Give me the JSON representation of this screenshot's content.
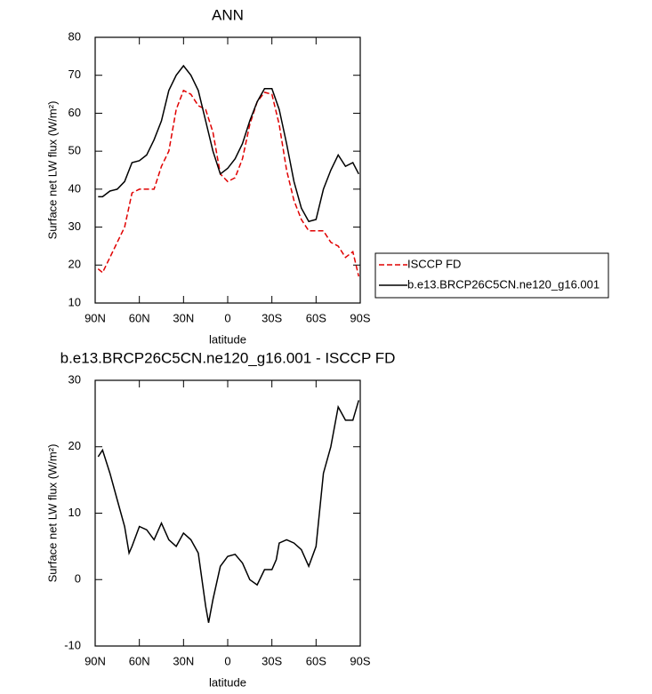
{
  "chart_data": [
    {
      "type": "line",
      "title": "ANN",
      "xlabel": "latitude",
      "ylabel": "Surface net LW flux (W/m²)",
      "x": [
        88,
        85,
        80,
        75,
        70,
        65,
        60,
        55,
        50,
        45,
        40,
        35,
        30,
        25,
        20,
        15,
        10,
        5,
        0,
        -5,
        -10,
        -15,
        -20,
        -25,
        -30,
        -35,
        -40,
        -45,
        -50,
        -55,
        -60,
        -65,
        -70,
        -75,
        -80,
        -85,
        -89
      ],
      "series": [
        {
          "name": "ISCCP FD",
          "color": "#e00000",
          "dashed": true,
          "values": [
            19,
            18,
            22,
            26,
            30,
            39,
            40,
            40,
            40,
            46,
            50,
            61,
            66,
            65,
            62,
            61,
            55,
            44,
            42,
            43,
            48,
            57,
            63,
            65.5,
            65,
            57,
            45,
            37,
            32,
            29,
            29,
            29,
            26,
            25,
            22,
            23.5,
            17
          ]
        },
        {
          "name": "b.e13.BRCP26C5CN.ne120_g16.001",
          "color": "#000000",
          "dashed": false,
          "values": [
            38,
            38,
            39.5,
            40,
            42,
            47,
            47.5,
            49,
            53,
            58,
            66,
            70,
            72.5,
            70,
            66,
            58,
            50,
            44,
            45.5,
            48,
            52,
            58,
            63,
            66.5,
            66.5,
            61,
            52,
            42,
            35,
            31.5,
            32,
            40,
            45,
            49,
            46,
            47,
            44
          ]
        }
      ],
      "xlim": [
        90,
        -90
      ],
      "xticks": [
        {
          "value": 90,
          "label": "90N"
        },
        {
          "value": 60,
          "label": "60N"
        },
        {
          "value": 30,
          "label": "30N"
        },
        0,
        {
          "value": -30,
          "label": "30S"
        },
        {
          "value": -60,
          "label": "60S"
        },
        {
          "value": -90,
          "label": "90S"
        }
      ],
      "ylim": [
        10,
        80
      ],
      "yticks": [
        10,
        20,
        30,
        40,
        50,
        60,
        70,
        80
      ],
      "legend": "right"
    },
    {
      "type": "line",
      "title": "b.e13.BRCP26C5CN.ne120_g16.001 - ISCCP FD",
      "xlabel": "latitude",
      "ylabel": "Surface net LW flux (W/m²)",
      "x": [
        88,
        85,
        80,
        75,
        70,
        67,
        65,
        60,
        55,
        50,
        45,
        40,
        35,
        30,
        25,
        20,
        15,
        13,
        10,
        5,
        0,
        -5,
        -10,
        -15,
        -20,
        -25,
        -30,
        -33,
        -35,
        -40,
        -45,
        -50,
        -55,
        -60,
        -65,
        -70,
        -75,
        -80,
        -85,
        -89
      ],
      "series": [
        {
          "color": "#000000",
          "dashed": false,
          "values": [
            18.5,
            19.5,
            16,
            12,
            8,
            4,
            5,
            8,
            7.5,
            6,
            8.5,
            6,
            5,
            7,
            6,
            4,
            -4,
            -6.5,
            -3,
            2,
            3.5,
            3.8,
            2.5,
            0,
            -0.8,
            1.5,
            1.5,
            3,
            5.5,
            6,
            5.5,
            4.5,
            2,
            5,
            16,
            20,
            26,
            24,
            24,
            27
          ]
        }
      ],
      "xlim": [
        90,
        -90
      ],
      "xticks": [
        {
          "value": 90,
          "label": "90N"
        },
        {
          "value": 60,
          "label": "60N"
        },
        {
          "value": 30,
          "label": "30N"
        },
        0,
        {
          "value": -30,
          "label": "30S"
        },
        {
          "value": -60,
          "label": "60S"
        },
        {
          "value": -90,
          "label": "90S"
        }
      ],
      "ylim": [
        -10,
        30
      ],
      "yticks": [
        -10,
        0,
        10,
        20,
        30
      ]
    }
  ]
}
